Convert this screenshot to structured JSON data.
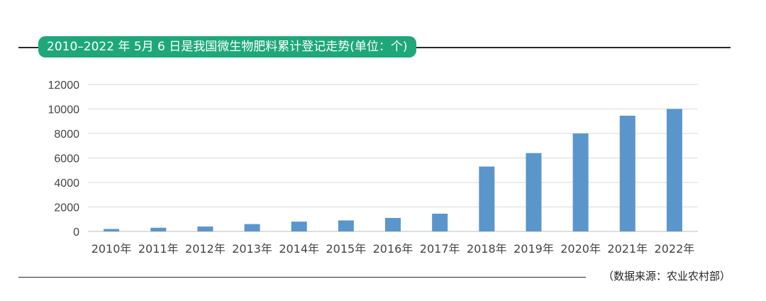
{
  "chart_data": {
    "type": "bar",
    "title": "2010–2022 年 5月 6 日是我国微生物肥料累计登记走势(单位：个)",
    "categories": [
      "2010年",
      "2011年",
      "2012年",
      "2013年",
      "2014年",
      "2015年",
      "2016年",
      "2017年",
      "2018年",
      "2019年",
      "2020年",
      "2021年",
      "2022年"
    ],
    "values": [
      200,
      300,
      400,
      600,
      800,
      900,
      1100,
      1450,
      5300,
      6400,
      8000,
      9450,
      10000
    ],
    "ylim": [
      0,
      12000
    ],
    "yticks": [
      "0",
      "2000",
      "4000",
      "6000",
      "8000",
      "10000",
      "12000"
    ],
    "grid": true,
    "bar_color": "#5a96cc",
    "title_bg_color": "#1ea87a"
  },
  "source": "（数据来源：农业农村部）"
}
